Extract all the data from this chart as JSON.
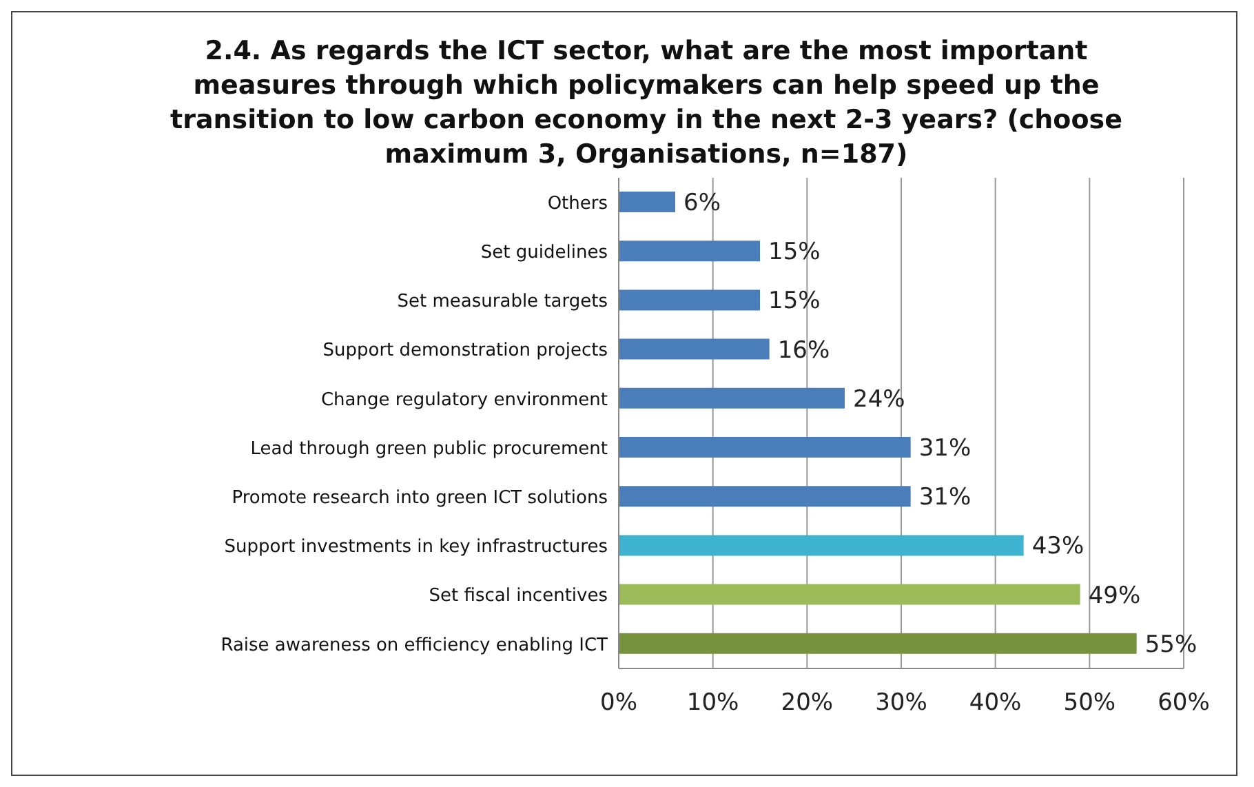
{
  "chart_data": {
    "type": "bar",
    "orientation": "horizontal",
    "title": "2.4. As regards the ICT sector, what are the most important measures through which policymakers can help speed up the transition to low carbon economy in the next 2-3 years? (choose maximum 3, Organisations,  n=187)",
    "categories": [
      "Others",
      "Set guidelines",
      "Set measurable targets",
      "Support demonstration projects",
      "Change regulatory environment",
      "Lead through green public procurement",
      "Promote research into green ICT solutions",
      "Support investments in key infrastructures",
      "Set fiscal incentives",
      "Raise awareness on efficiency enabling ICT"
    ],
    "values": [
      6,
      15,
      15,
      16,
      24,
      31,
      31,
      43,
      49,
      55
    ],
    "value_labels": [
      "6%",
      "15%",
      "15%",
      "16%",
      "24%",
      "31%",
      "31%",
      "43%",
      "49%",
      "55%"
    ],
    "colors": [
      "#4a7ebb",
      "#4a7ebb",
      "#4a7ebb",
      "#4a7ebb",
      "#4a7ebb",
      "#4a7ebb",
      "#4a7ebb",
      "#3fb4d0",
      "#9bbb59",
      "#76923c"
    ],
    "xlim": [
      0,
      60
    ],
    "xticks": [
      {
        "value": 0,
        "label": "0%"
      },
      {
        "value": 10,
        "label": "10%"
      },
      {
        "value": 20,
        "label": "20%"
      },
      {
        "value": 30,
        "label": "30%"
      },
      {
        "value": 40,
        "label": "40%"
      },
      {
        "value": 50,
        "label": "50%"
      },
      {
        "value": 60,
        "label": "60%"
      }
    ],
    "grid": "x"
  }
}
